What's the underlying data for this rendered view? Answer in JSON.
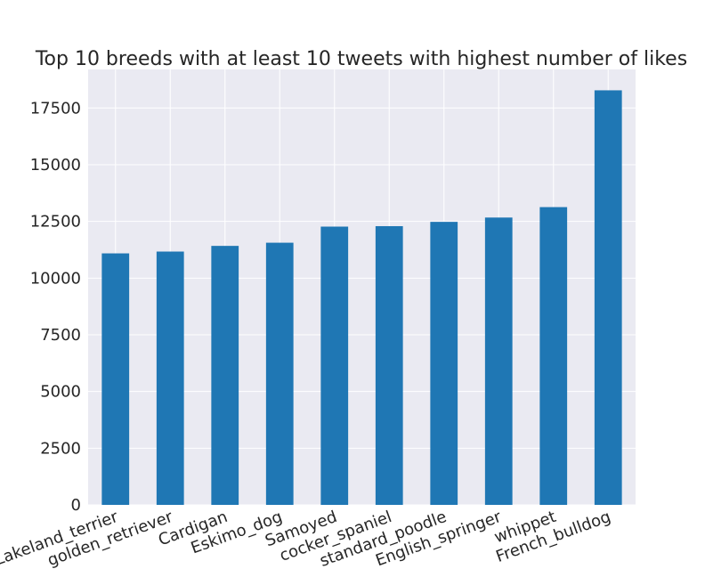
{
  "chart_data": {
    "type": "bar",
    "title": "Top 10 breeds with at least 10 tweets with highest number of likes",
    "xlabel": "",
    "ylabel": "",
    "categories": [
      "Lakeland_terrier",
      "golden_retriever",
      "Cardigan",
      "Eskimo_dog",
      "Samoyed",
      "cocker_spaniel",
      "standard_poodle",
      "English_springer",
      "whippet",
      "French_bulldog"
    ],
    "values": [
      11090,
      11170,
      11420,
      11560,
      12270,
      12290,
      12480,
      12670,
      13130,
      18280
    ],
    "ylim": [
      0,
      19200
    ],
    "yticks": [
      0,
      2500,
      5000,
      7500,
      10000,
      12500,
      15000,
      17500
    ],
    "ytick_labels": [
      "0",
      "2500",
      "5000",
      "7500",
      "10000",
      "12500",
      "15000",
      "17500"
    ],
    "grid": true,
    "legend": "none",
    "colors": {
      "bar": "#1f77b4",
      "background": "#eaeaf2",
      "grid": "#ffffff",
      "text": "#262626"
    }
  }
}
